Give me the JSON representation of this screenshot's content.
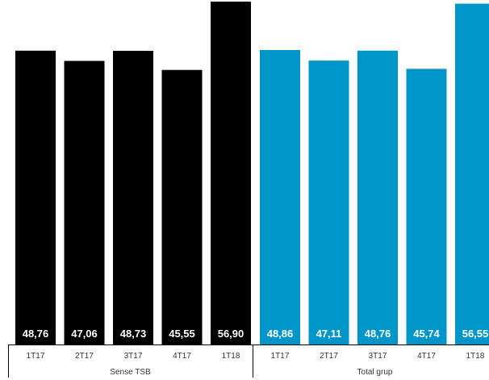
{
  "chart_data": {
    "type": "bar",
    "categories": [
      "1T17",
      "2T17",
      "3T17",
      "4T17",
      "1T18"
    ],
    "groups": [
      {
        "name": "Sense TSB",
        "color": "#000000",
        "values": [
          48.76,
          47.06,
          48.73,
          45.55,
          56.9
        ],
        "labels": [
          "48,76",
          "47,06",
          "48,73",
          "45,55",
          "56,90"
        ]
      },
      {
        "name": "Total grup",
        "color": "#0095c8",
        "values": [
          48.86,
          47.11,
          48.76,
          45.74,
          56.55
        ],
        "labels": [
          "48,86",
          "47,11",
          "48,76",
          "45,74",
          "56,55"
        ]
      }
    ],
    "title": "",
    "xlabel": "",
    "ylabel": "",
    "grid": false,
    "legend": "none"
  }
}
